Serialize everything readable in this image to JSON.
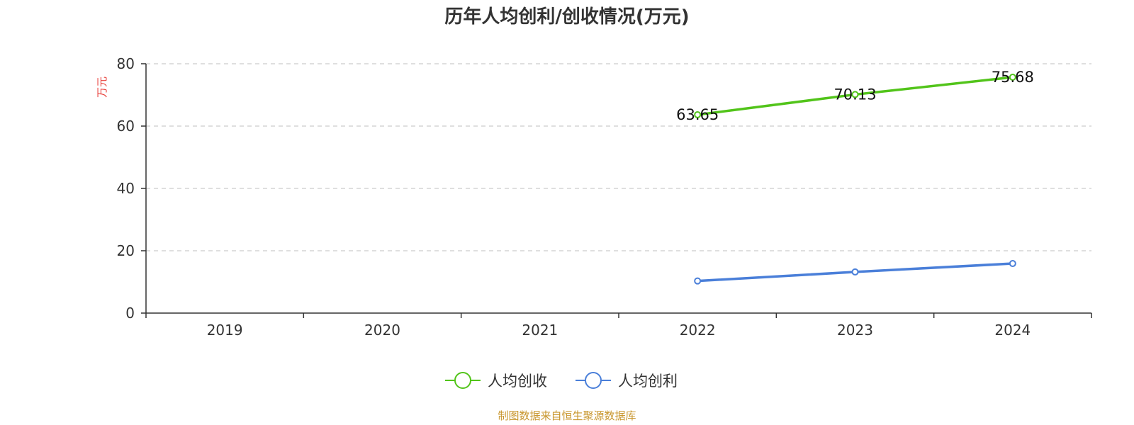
{
  "colors": {
    "revenue": "#52c41a",
    "profit": "#4a7fd9",
    "ylabel": "#e8413c",
    "source": "#c8962d",
    "grid": "#cccccc",
    "axis": "#333333"
  },
  "chart_data": {
    "type": "line",
    "title": "历年人均创利/创收情况(万元)",
    "ylabel": "万元",
    "xlabel": "",
    "categories": [
      "2019",
      "2020",
      "2021",
      "2022",
      "2023",
      "2024"
    ],
    "ylim": [
      0,
      80
    ],
    "yticks": [
      0,
      20,
      40,
      60,
      80
    ],
    "grid": "horizontal-dashed",
    "legend_position": "bottom-center",
    "series": [
      {
        "name": "人均创收",
        "color_key": "revenue",
        "values": [
          null,
          null,
          null,
          63.65,
          70.13,
          75.68
        ],
        "labels": [
          null,
          null,
          null,
          "63.65",
          "70.13",
          "75.68"
        ]
      },
      {
        "name": "人均创利",
        "color_key": "profit",
        "values": [
          null,
          null,
          null,
          10.3,
          13.2,
          15.9
        ],
        "labels": [
          null,
          null,
          null,
          null,
          null,
          null
        ]
      }
    ]
  },
  "footer": {
    "source": "制图数据来自恒生聚源数据库"
  }
}
